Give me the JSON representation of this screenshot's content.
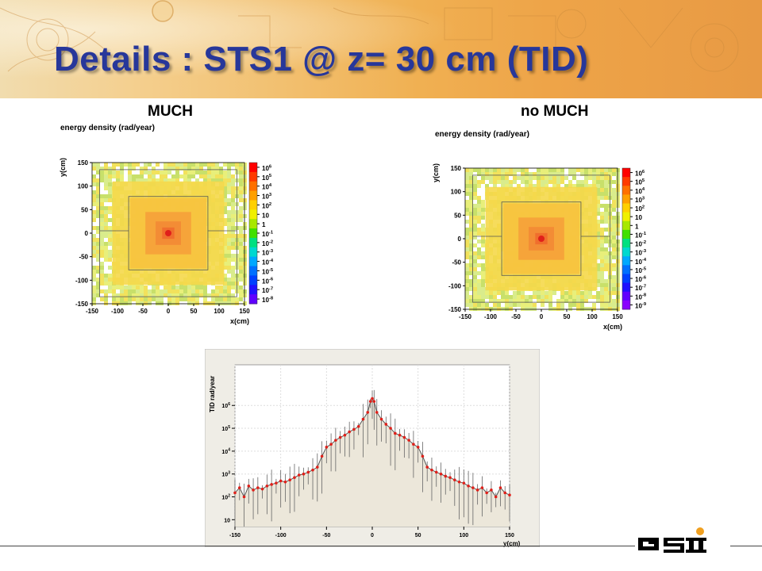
{
  "slide": {
    "title": "Details : STS1 @ z= 30 cm (TID)",
    "left_label": "MUCH",
    "right_label": "no MUCH",
    "logo_text": "GSI"
  },
  "colors": {
    "title": "#27379a",
    "banner": "#f0b052",
    "marker": "#e0201a",
    "fill": "#ece7da"
  },
  "chart_data": [
    {
      "type": "heatmap",
      "panel": "MUCH",
      "title": "energy density (rad/year)",
      "xlabel": "x(cm)",
      "ylabel": "y(cm)",
      "xlim": [
        -150,
        150
      ],
      "ylim": [
        -150,
        150
      ],
      "xticks": [
        "-150",
        "-100",
        "-50",
        "0",
        "50",
        "100",
        "150"
      ],
      "yticks": [
        "150",
        "100",
        "50",
        "0",
        "-50",
        "-100",
        "-150"
      ],
      "colorbar": {
        "scale": "log",
        "tick_labels": [
          {
            "m": "10",
            "e": "6"
          },
          {
            "m": "10",
            "e": "5"
          },
          {
            "m": "10",
            "e": "4"
          },
          {
            "m": "10",
            "e": "3"
          },
          {
            "m": "10",
            "e": "2"
          },
          {
            "m": "10",
            "e": ""
          },
          {
            "m": "1",
            "e": ""
          },
          {
            "m": "10",
            "e": "-1"
          },
          {
            "m": "10",
            "e": "-2"
          },
          {
            "m": "10",
            "e": "-3"
          },
          {
            "m": "10",
            "e": "-4"
          },
          {
            "m": "10",
            "e": "-5"
          },
          {
            "m": "10",
            "e": "-6"
          },
          {
            "m": "10",
            "e": "-7"
          },
          {
            "m": "10",
            "e": "-8"
          }
        ]
      }
    },
    {
      "type": "heatmap",
      "panel": "no MUCH",
      "title": "energy density (rad/year)",
      "xlabel": "x(cm)",
      "ylabel": "y(cm)",
      "xlim": [
        -150,
        150
      ],
      "ylim": [
        -150,
        150
      ],
      "xticks": [
        "-150",
        "-100",
        "-50",
        "0",
        "50",
        "100",
        "150"
      ],
      "yticks": [
        "150",
        "100",
        "50",
        "0",
        "-50",
        "-100",
        "-150"
      ],
      "colorbar": {
        "scale": "log",
        "tick_labels": [
          {
            "m": "10",
            "e": "6"
          },
          {
            "m": "10",
            "e": "5"
          },
          {
            "m": "10",
            "e": "4"
          },
          {
            "m": "10",
            "e": "3"
          },
          {
            "m": "10",
            "e": "2"
          },
          {
            "m": "10",
            "e": ""
          },
          {
            "m": "1",
            "e": ""
          },
          {
            "m": "10",
            "e": "-1"
          },
          {
            "m": "10",
            "e": "-2"
          },
          {
            "m": "10",
            "e": "-3"
          },
          {
            "m": "10",
            "e": "-4"
          },
          {
            "m": "10",
            "e": "-5"
          },
          {
            "m": "10",
            "e": "-6"
          },
          {
            "m": "10",
            "e": "-7"
          },
          {
            "m": "10",
            "e": "-8"
          },
          {
            "m": "10",
            "e": "-9"
          }
        ]
      }
    },
    {
      "type": "line",
      "panel": "profile",
      "xlabel": "y(cm)",
      "ylabel": "TID rad/year",
      "xlim": [
        -150,
        150
      ],
      "ylim": [
        5,
        60000000
      ],
      "yscale": "log",
      "xticks": [
        "-150",
        "-100",
        "-50",
        "0",
        "50",
        "100",
        "150"
      ],
      "yticks": [
        {
          "v": 1000000,
          "m": "10",
          "e": "6"
        },
        {
          "v": 100000,
          "m": "10",
          "e": "5"
        },
        {
          "v": 10000,
          "m": "10",
          "e": "4"
        },
        {
          "v": 1000,
          "m": "10",
          "e": "3"
        },
        {
          "v": 100,
          "m": "10",
          "e": "2"
        },
        {
          "v": 10,
          "m": "10",
          "e": ""
        }
      ],
      "series": [
        {
          "x": [
            -150,
            -145,
            -140,
            -135,
            -130,
            -125,
            -120,
            -115,
            -110,
            -105,
            -100,
            -95,
            -90,
            -85,
            -80,
            -75,
            -70,
            -65,
            -60,
            -55,
            -50,
            -45,
            -40,
            -35,
            -30,
            -25,
            -20,
            -15,
            -10,
            -5,
            -2,
            0,
            2,
            5,
            10,
            15,
            20,
            25,
            30,
            35,
            40,
            45,
            50,
            55,
            60,
            65,
            70,
            75,
            80,
            85,
            90,
            95,
            100,
            105,
            110,
            115,
            120,
            125,
            130,
            135,
            140,
            145,
            150
          ],
          "y": [
            150,
            250,
            100,
            300,
            200,
            250,
            220,
            300,
            350,
            400,
            500,
            450,
            550,
            700,
            900,
            1000,
            1200,
            1500,
            2000,
            6000,
            15000,
            20000,
            30000,
            40000,
            50000,
            70000,
            90000,
            120000,
            250000,
            500000,
            1500000,
            2000000,
            1500000,
            500000,
            250000,
            150000,
            100000,
            60000,
            50000,
            40000,
            30000,
            20000,
            15000,
            6000,
            2000,
            1500,
            1200,
            1000,
            800,
            700,
            550,
            450,
            400,
            300,
            250,
            200,
            250,
            150,
            200,
            100,
            250,
            150,
            120
          ]
        }
      ]
    }
  ]
}
